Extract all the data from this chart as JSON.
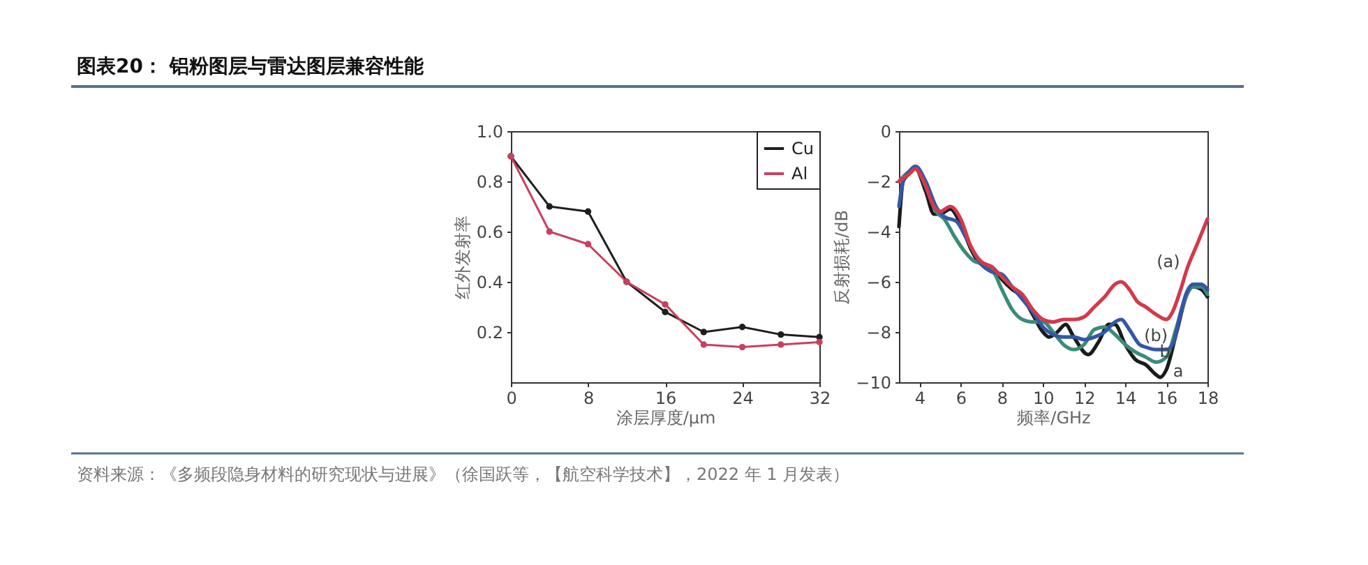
{
  "chart_data": [
    {
      "type": "line",
      "title": "图表20： 铝粉图层与雷达图层兼容性能",
      "annotations": [
        "资料来源：《多频段隐身材料的研究现状与进展》（徐国跃等，【航空科学技术】，2022 年 1 月发表）"
      ],
      "xlabel": "涂层厚度/μm",
      "ylabel": "红外发射率",
      "x": [
        0,
        4,
        8,
        12,
        16,
        20,
        24,
        28,
        32
      ],
      "series": [
        {
          "name": "Cu",
          "color": "#1e1e1e",
          "values": [
            0.9,
            0.7,
            0.68,
            0.4,
            0.28,
            0.2,
            0.22,
            0.19,
            0.18
          ]
        },
        {
          "name": "Al",
          "color": "#c8405f",
          "values": [
            0.9,
            0.6,
            0.55,
            0.4,
            0.31,
            0.15,
            0.14,
            0.15,
            0.16
          ]
        }
      ],
      "xlim": [
        0,
        32
      ],
      "xticks": [
        0,
        8,
        16,
        24,
        32
      ],
      "ylim": [
        0,
        1
      ],
      "yticks": [
        0.2,
        0.4,
        0.6,
        0.8,
        {
          "value": 1,
          "label": "1.0"
        }
      ],
      "marker": "circle",
      "line_style": "solid",
      "legend": "top right",
      "grid": false
    },
    {
      "type": "line",
      "xlabel": "频率/GHz",
      "ylabel": "反射损耗/dB",
      "line_style": "solid",
      "series": [
        {
          "color": "#1b1b1b",
          "x": [
            3.0,
            3.2,
            3.5,
            3.8,
            4.3,
            4.7,
            5.0,
            5.5,
            6.0,
            6.5,
            7.0,
            7.5,
            8.0,
            8.5,
            9.0,
            9.5,
            10.0,
            10.3,
            10.7,
            11.1,
            11.5,
            12.2,
            12.7,
            13.2,
            13.5,
            14.0,
            14.5,
            15.0,
            15.5,
            15.7,
            16.0,
            16.5,
            17.0,
            17.3,
            17.7,
            18.0
          ],
          "values": [
            -3.8,
            -2.0,
            -1.7,
            -1.5,
            -2.4,
            -3.3,
            -3.3,
            -3.1,
            -3.7,
            -4.7,
            -5.3,
            -5.4,
            -5.9,
            -6.3,
            -6.6,
            -7.3,
            -8.0,
            -8.2,
            -8.0,
            -7.7,
            -8.2,
            -8.9,
            -8.4,
            -7.7,
            -7.7,
            -8.5,
            -9.1,
            -9.3,
            -9.7,
            -9.8,
            -9.5,
            -8.0,
            -6.5,
            -6.2,
            -6.3,
            -6.6
          ]
        },
        {
          "color": "#3a8c78",
          "x": [
            3.0,
            3.5,
            3.8,
            4.3,
            4.8,
            5.2,
            5.7,
            6.2,
            6.7,
            7.2,
            7.6,
            8.0,
            8.5,
            9.0,
            9.5,
            10.0,
            10.5,
            11.0,
            11.5,
            12.0,
            12.5,
            13.0,
            13.5,
            14.0,
            14.5,
            15.0,
            15.5,
            16.0,
            16.5,
            17.0,
            17.3,
            17.7,
            18.0
          ],
          "values": [
            -2.0,
            -1.6,
            -1.5,
            -2.2,
            -3.2,
            -3.5,
            -4.2,
            -4.8,
            -5.2,
            -5.3,
            -5.6,
            -6.3,
            -7.1,
            -7.5,
            -7.6,
            -7.6,
            -8.0,
            -8.5,
            -8.7,
            -8.5,
            -7.9,
            -7.8,
            -8.1,
            -8.5,
            -8.8,
            -9.0,
            -9.2,
            -9.0,
            -7.8,
            -6.5,
            -6.2,
            -6.2,
            -6.5
          ]
        },
        {
          "color": "#3556a8",
          "x": [
            3.0,
            3.2,
            3.5,
            3.8,
            4.3,
            4.8,
            5.2,
            5.8,
            6.3,
            7.0,
            7.5,
            8.0,
            8.5,
            9.0,
            9.5,
            10.0,
            10.5,
            11.0,
            11.5,
            12.0,
            12.5,
            13.0,
            13.5,
            13.8,
            14.2,
            14.7,
            15.0,
            15.5,
            16.0,
            16.3,
            16.7,
            17.0,
            17.3,
            17.7,
            18.0
          ],
          "values": [
            -3.0,
            -2.0,
            -1.6,
            -1.4,
            -2.0,
            -3.0,
            -3.4,
            -3.6,
            -4.3,
            -5.3,
            -5.6,
            -5.7,
            -6.2,
            -6.7,
            -7.2,
            -7.8,
            -8.1,
            -8.2,
            -8.2,
            -8.3,
            -8.2,
            -8.0,
            -7.6,
            -7.5,
            -7.9,
            -8.5,
            -8.6,
            -8.7,
            -8.7,
            -8.5,
            -7.2,
            -6.4,
            -6.1,
            -6.1,
            -6.3
          ]
        },
        {
          "color": "#d23a4a",
          "x": [
            3.0,
            3.5,
            3.8,
            4.2,
            4.7,
            5.0,
            5.5,
            6.0,
            6.5,
            7.0,
            7.5,
            8.0,
            8.5,
            9.0,
            9.5,
            10.0,
            10.5,
            11.0,
            11.5,
            12.0,
            12.5,
            13.0,
            13.5,
            13.8,
            14.2,
            14.6,
            15.0,
            15.5,
            16.0,
            16.3,
            16.7,
            17.0,
            17.5,
            18.0
          ],
          "values": [
            -2.0,
            -1.7,
            -1.5,
            -2.0,
            -3.0,
            -3.2,
            -3.0,
            -3.5,
            -4.6,
            -5.2,
            -5.4,
            -5.8,
            -6.2,
            -6.5,
            -7.1,
            -7.5,
            -7.6,
            -7.5,
            -7.5,
            -7.4,
            -7.0,
            -6.6,
            -6.1,
            -6.0,
            -6.3,
            -6.8,
            -7.0,
            -7.3,
            -7.5,
            -7.2,
            -6.3,
            -5.5,
            -4.5,
            -3.5
          ]
        }
      ],
      "xlim": [
        3,
        18
      ],
      "xticks": [
        4,
        6,
        8,
        10,
        12,
        14,
        16,
        18
      ],
      "ylim": [
        -10,
        0
      ],
      "yticks": [
        -10,
        -8,
        -6,
        -4,
        -2,
        0
      ],
      "annotations": [
        "(a)",
        "(b)",
        "b",
        "a"
      ],
      "grid": false
    }
  ]
}
